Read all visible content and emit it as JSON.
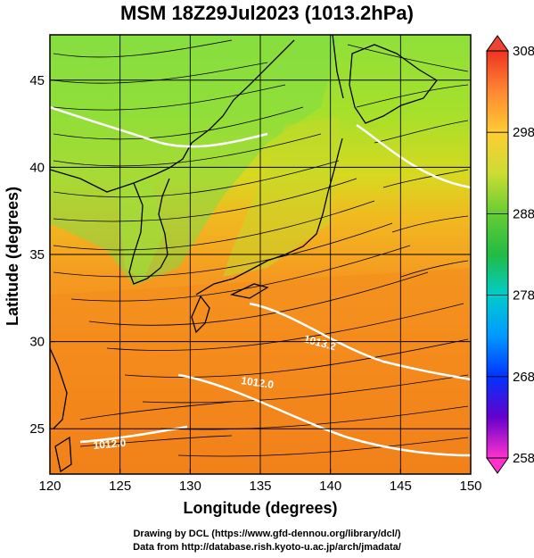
{
  "title": "MSM 18Z29Jul2023 (1013.2hPa)",
  "map": {
    "lon_range": [
      120,
      150
    ],
    "lat_range": [
      22.4,
      47.6
    ],
    "lon_ticks": [
      "120",
      "125",
      "130",
      "135",
      "140",
      "145",
      "150"
    ],
    "lat_ticks": [
      "25",
      "30",
      "35",
      "40",
      "45"
    ],
    "xlabel": "Longitude (degrees)",
    "ylabel": "Latitude  (degrees)",
    "field": "temperature",
    "vectors": "streamlines",
    "contour_labels": [
      "1013.2",
      "1012.0",
      "1012.0"
    ]
  },
  "colorbar": {
    "ticks": [
      "308",
      "298",
      "288",
      "278",
      "268",
      "258"
    ],
    "range": [
      258,
      308
    ],
    "colors": [
      "#ff33cc",
      "#6600cc",
      "#0033ff",
      "#0099ff",
      "#00cccc",
      "#33cc66",
      "#66cc33",
      "#ccdd33",
      "#ffcc33",
      "#ff9933",
      "#ff6633",
      "#ee2222"
    ]
  },
  "credits": {
    "line1": "Drawing by DCL (https://www.gfd-dennou.org/library/dcl/)",
    "line2": "Data from http://database.rish.kyoto-u.ac.jp/arch/jmadata/"
  }
}
